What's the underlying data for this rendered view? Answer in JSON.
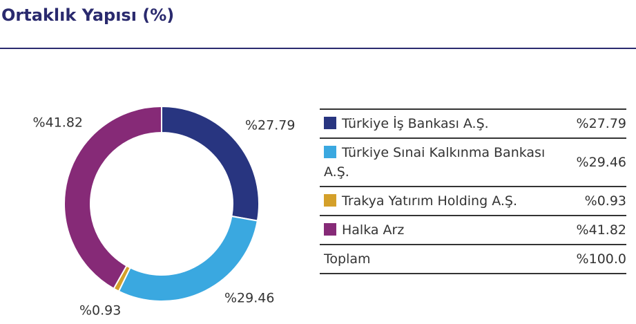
{
  "chart_data": {
    "type": "pie",
    "donut": true,
    "title": "Ortaklık Yapısı (%)",
    "categories": [
      "Türkiye İş Bankası A.Ş.",
      "Türkiye Sınai Kalkınma Bankası A.Ş.",
      "Trakya Yatırım Holding A.Ş.",
      "Halka Arz"
    ],
    "values": [
      27.79,
      29.46,
      0.93,
      41.82
    ],
    "value_labels": [
      "%27.79",
      "%29.46",
      "%0.93",
      "%41.82"
    ],
    "colors": [
      "#283580",
      "#3aa8e0",
      "#d4a02a",
      "#862a77"
    ],
    "total_label": "Toplam",
    "total": 100.0,
    "total_value_label": "%100.0"
  }
}
